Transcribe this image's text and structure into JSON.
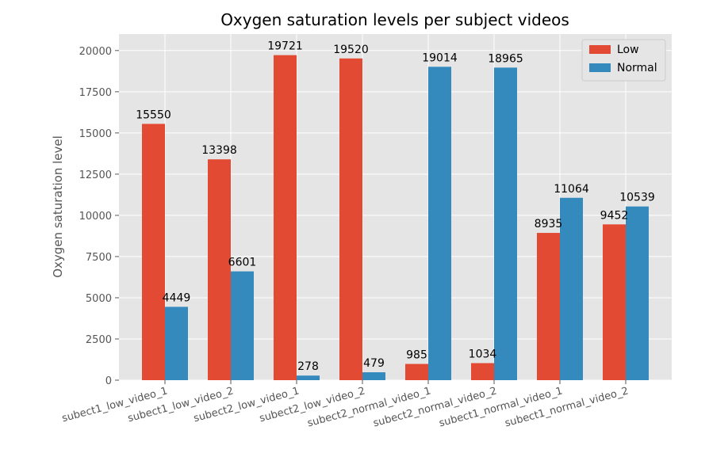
{
  "chart_data": {
    "type": "bar",
    "title": "Oxygen saturation levels per subject videos",
    "xlabel": "",
    "ylabel": "Oxygen saturation level",
    "ylim": [
      0,
      21000
    ],
    "yticks": [
      0,
      2500,
      5000,
      7500,
      10000,
      12500,
      15000,
      17500,
      20000
    ],
    "grid": true,
    "legend_position": "top-right",
    "categories": [
      "subect1_low_video_1",
      "subect1_low_video_2",
      "subect2_low_video_1",
      "subect2_low_video_2",
      "subect2_normal_video_1",
      "subect2_normal_video_2",
      "subect1_normal_video_1",
      "subect1_normal_video_2"
    ],
    "series": [
      {
        "name": "Low",
        "color": "#E24A33",
        "values": [
          15550,
          13398,
          19721,
          19520,
          985,
          1034,
          8935,
          9452
        ]
      },
      {
        "name": "Normal",
        "color": "#348ABD",
        "values": [
          4449,
          6601,
          278,
          479,
          19014,
          18965,
          11064,
          10539
        ]
      }
    ]
  }
}
